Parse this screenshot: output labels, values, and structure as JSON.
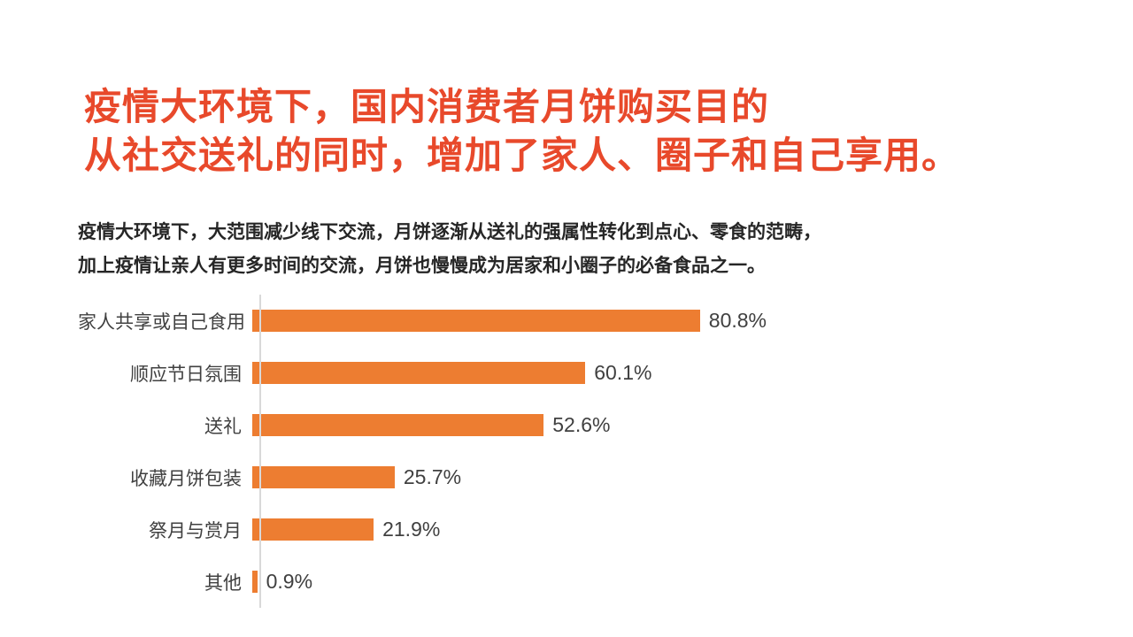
{
  "title": {
    "line1": "疫情大环境下，国内消费者月饼购买目的",
    "line2": "从社交送礼的同时，增加了家人、圈子和自己享用。"
  },
  "subtitle": {
    "line1": "疫情大环境下，大范围减少线下交流，月饼逐渐从送礼的强属性转化到点心、零食的范畴，",
    "line2": "加上疫情让亲人有更多时间的交流，月饼也慢慢成为居家和小圈子的必备食品之一。"
  },
  "chart_data": {
    "type": "bar",
    "orientation": "horizontal",
    "categories": [
      "家人共享或自己食用",
      "顺应节日氛围",
      "送礼",
      "收藏月饼包装",
      "祭月与赏月",
      "其他"
    ],
    "values": [
      80.8,
      60.1,
      52.6,
      25.7,
      21.9,
      0.9
    ],
    "value_labels": [
      "80.8%",
      "60.1%",
      "52.6%",
      "25.7%",
      "21.9%",
      "0.9%"
    ],
    "title": "",
    "xlabel": "",
    "ylabel": "",
    "xlim": [
      0,
      100
    ],
    "grid": false,
    "legend": false,
    "bar_color": "#ED7D31",
    "axis_line_color": "#D9D9D9"
  },
  "colors": {
    "title_text": "#E8492B",
    "body_text": "#262626",
    "label_text": "#404040",
    "bar": "#ED7D31",
    "axis": "#D9D9D9",
    "background": "#FFFFFF"
  }
}
